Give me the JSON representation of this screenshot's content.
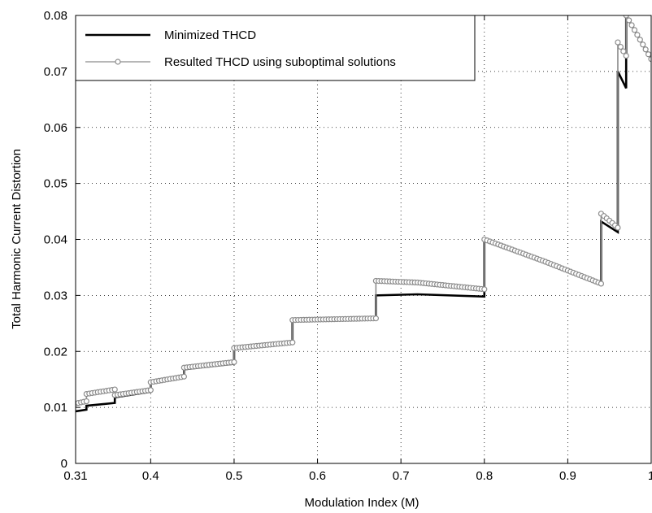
{
  "chart_data": {
    "type": "line",
    "xlabel": "Modulation Index (M)",
    "ylabel": "Total Harmonic Current Distortion",
    "xlim": [
      0.31,
      1.0
    ],
    "ylim": [
      0,
      0.08
    ],
    "xticks": [
      0.31,
      0.4,
      0.5,
      0.6,
      0.7,
      0.8,
      0.9,
      1.0
    ],
    "xtick_labels": [
      "0.31",
      "0.4",
      "0.5",
      "0.6",
      "0.7",
      "0.8",
      "0.9",
      "1"
    ],
    "yticks": [
      0,
      0.01,
      0.02,
      0.03,
      0.04,
      0.05,
      0.06,
      0.07,
      0.08
    ],
    "ytick_labels": [
      "0",
      "0.01",
      "0.02",
      "0.03",
      "0.04",
      "0.05",
      "0.06",
      "0.07",
      "0.08"
    ],
    "grid": true,
    "legend_position": "top-left",
    "series": [
      {
        "name": "Minimized THCD",
        "color": "#000000",
        "marker": "none",
        "segments": [
          [
            [
              0.31,
              0.0093
            ],
            [
              0.323,
              0.0096
            ]
          ],
          [
            [
              0.323,
              0.0103
            ],
            [
              0.357,
              0.0108
            ]
          ],
          [
            [
              0.357,
              0.0118
            ],
            [
              0.4,
              0.0128
            ]
          ],
          [
            [
              0.4,
              0.0143
            ],
            [
              0.44,
              0.0153
            ]
          ],
          [
            [
              0.44,
              0.0168
            ],
            [
              0.5,
              0.0178
            ]
          ],
          [
            [
              0.5,
              0.0205
            ],
            [
              0.57,
              0.0215
            ]
          ],
          [
            [
              0.57,
              0.0254
            ],
            [
              0.67,
              0.0258
            ]
          ],
          [
            [
              0.67,
              0.03
            ],
            [
              0.72,
              0.0302
            ],
            [
              0.8,
              0.0298
            ]
          ],
          [
            [
              0.8,
              0.0398
            ],
            [
              0.87,
              0.036
            ],
            [
              0.94,
              0.032
            ]
          ],
          [
            [
              0.94,
              0.0432
            ],
            [
              0.96,
              0.0413
            ]
          ],
          [
            [
              0.96,
              0.07
            ],
            [
              0.97,
              0.067
            ]
          ],
          [
            [
              0.97,
              0.08
            ],
            [
              1.0,
              0.0722
            ]
          ]
        ]
      },
      {
        "name": "Resulted THCD using suboptimal solutions",
        "color": "#8c8c8c",
        "marker": "circle",
        "segments": [
          [
            [
              0.31,
              0.0107
            ],
            [
              0.323,
              0.0111
            ]
          ],
          [
            [
              0.323,
              0.0124
            ],
            [
              0.357,
              0.0132
            ]
          ],
          [
            [
              0.357,
              0.0122
            ],
            [
              0.4,
              0.0131
            ]
          ],
          [
            [
              0.4,
              0.0145
            ],
            [
              0.44,
              0.0155
            ]
          ],
          [
            [
              0.44,
              0.0171
            ],
            [
              0.5,
              0.0181
            ]
          ],
          [
            [
              0.5,
              0.0206
            ],
            [
              0.57,
              0.0216
            ]
          ],
          [
            [
              0.57,
              0.0256
            ],
            [
              0.67,
              0.0259
            ]
          ],
          [
            [
              0.67,
              0.0326
            ],
            [
              0.72,
              0.0323
            ],
            [
              0.8,
              0.0311
            ]
          ],
          [
            [
              0.8,
              0.04
            ],
            [
              0.87,
              0.0362
            ],
            [
              0.94,
              0.0321
            ]
          ],
          [
            [
              0.94,
              0.0446
            ],
            [
              0.96,
              0.0421
            ]
          ],
          [
            [
              0.96,
              0.0752
            ],
            [
              0.97,
              0.0728
            ]
          ],
          [
            [
              0.97,
              0.08
            ],
            [
              1.0,
              0.0722
            ]
          ]
        ]
      }
    ]
  }
}
